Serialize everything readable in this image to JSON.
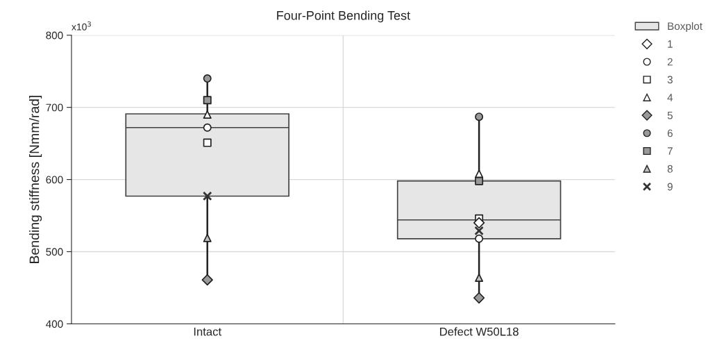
{
  "chart_data": {
    "type": "box",
    "title": "Four-Point Bending Test",
    "ylabel": "Bending stiffness [Nmm/rad]",
    "annotations": [
      "x10$^{3}$"
    ],
    "categories": [
      "Intact",
      "Defect W50L18"
    ],
    "ylim": [
      400,
      800
    ],
    "yticks": [
      400,
      500,
      600,
      700,
      800
    ],
    "grid": true,
    "legend": "right",
    "series": [
      {
        "name": "Boxplot",
        "type": "box",
        "color": "#e6e6e6",
        "boxes": [
          {
            "low": 461,
            "q1": 577,
            "median": 672,
            "q3": 691,
            "high": 740
          },
          {
            "low": 436,
            "q1": 518,
            "median": 544,
            "q3": 598,
            "high": 687
          }
        ]
      },
      {
        "name": "1",
        "type": "scatter",
        "marker": "diamond",
        "color": "#ffffff",
        "x": [
          "Intact",
          "Defect W50L18"
        ],
        "values": [
          null,
          540
        ]
      },
      {
        "name": "2",
        "type": "scatter",
        "marker": "circle",
        "color": "#ffffff",
        "x": [
          "Intact",
          "Defect W50L18"
        ],
        "values": [
          672,
          518
        ]
      },
      {
        "name": "3",
        "type": "scatter",
        "marker": "square",
        "color": "#ffffff",
        "x": [
          "Intact",
          "Defect W50L18"
        ],
        "values": [
          651,
          546
        ]
      },
      {
        "name": "4",
        "type": "scatter",
        "marker": "triangle",
        "color": "#ffffff",
        "x": [
          "Intact",
          "Defect W50L18"
        ],
        "values": [
          690,
          608
        ]
      },
      {
        "name": "5",
        "type": "scatter",
        "marker": "diamond",
        "color": "#999999",
        "x": [
          "Intact",
          "Defect W50L18"
        ],
        "values": [
          461,
          436
        ]
      },
      {
        "name": "6",
        "type": "scatter",
        "marker": "circle",
        "color": "#999999",
        "x": [
          "Intact",
          "Defect W50L18"
        ],
        "values": [
          740,
          687
        ]
      },
      {
        "name": "7",
        "type": "scatter",
        "marker": "square",
        "color": "#999999",
        "x": [
          "Intact",
          "Defect W50L18"
        ],
        "values": [
          710,
          598
        ]
      },
      {
        "name": "8",
        "type": "scatter",
        "marker": "triangle",
        "color": "#bfbfbf",
        "x": [
          "Intact",
          "Defect W50L18"
        ],
        "values": [
          519,
          464
        ]
      },
      {
        "name": "9",
        "type": "scatter",
        "marker": "cross",
        "color": "#333333",
        "x": [
          "Intact",
          "Defect W50L18"
        ],
        "values": [
          577,
          529
        ]
      }
    ]
  }
}
